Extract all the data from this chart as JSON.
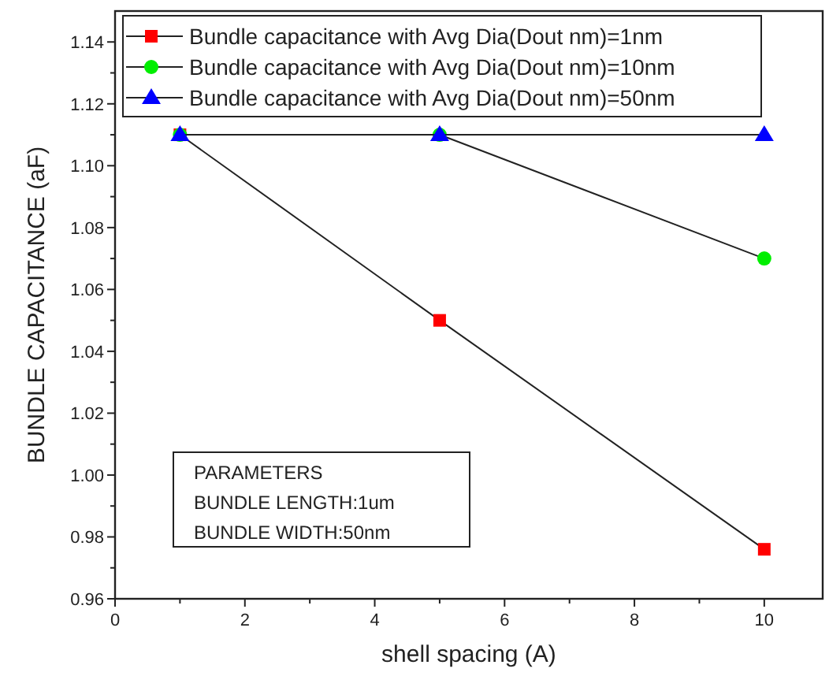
{
  "chart_data": {
    "type": "line",
    "xlabel": "shell spacing (A)",
    "ylabel": "BUNDLE CAPACITANCE (aF)",
    "x": [
      1,
      5,
      10
    ],
    "series": [
      {
        "name": "Bundle capacitance with Avg Dia(Dout nm)=1nm",
        "color": "#ff0000",
        "marker": "square",
        "values": [
          1.11,
          1.05,
          0.976
        ]
      },
      {
        "name": "Bundle capacitance with Avg Dia(Dout nm)=10nm",
        "color": "#00ee00",
        "marker": "circle",
        "values": [
          1.11,
          1.11,
          1.07
        ]
      },
      {
        "name": "Bundle capacitance with Avg Dia(Dout nm)=50nm",
        "color": "#0000ff",
        "marker": "triangle",
        "values": [
          1.11,
          1.11,
          1.11
        ]
      }
    ],
    "xlim": [
      0,
      10.9
    ],
    "xticks": [
      0,
      2,
      4,
      6,
      8,
      10
    ],
    "ylim": [
      0.96,
      1.15
    ],
    "yticks": [
      {
        "value": 0.96,
        "label": "0.96"
      },
      {
        "value": 0.98,
        "label": "0.98"
      },
      {
        "value": 1.0,
        "label": "1.00"
      },
      {
        "value": 1.02,
        "label": "1.02"
      },
      {
        "value": 1.04,
        "label": "1.04"
      },
      {
        "value": 1.06,
        "label": "1.06"
      },
      {
        "value": 1.08,
        "label": "1.08"
      },
      {
        "value": 1.1,
        "label": "1.10"
      },
      {
        "value": 1.12,
        "label": "1.12"
      },
      {
        "value": 1.14,
        "label": "1.14"
      }
    ],
    "grid": false,
    "legend": "top left",
    "line_style": "solid",
    "annotations": [
      "PARAMETERS",
      "BUNDLE LENGTH:1um",
      "BUNDLE WIDTH:50nm"
    ]
  }
}
